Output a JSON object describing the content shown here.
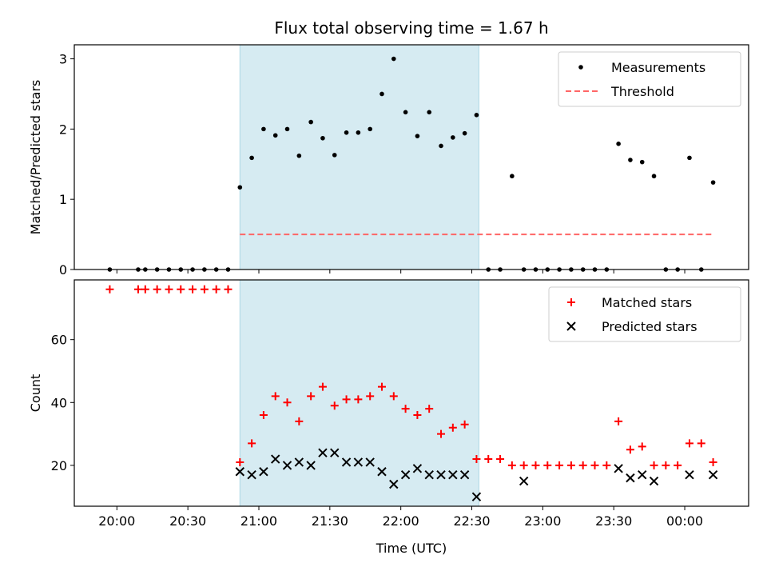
{
  "chart_data": {
    "title": "Flux total observing time = 1.67 h",
    "xlabel": "Time (UTC)",
    "x_axis_type": "time",
    "x_tick_labels": [
      "20:00",
      "20:30",
      "21:00",
      "21:30",
      "22:00",
      "22:30",
      "23:00",
      "23:30",
      "00:00"
    ],
    "x_tick_times": [
      "20:00",
      "20:30",
      "21:00",
      "21:30",
      "22:00",
      "22:30",
      "23:00",
      "23:30",
      "00:00"
    ],
    "xlim": [
      "19:42",
      "00:27"
    ],
    "shaded_region": {
      "start": "20:52",
      "end": "22:33",
      "color": "#add8e6"
    },
    "times": [
      "19:57",
      "20:09",
      "20:12",
      "20:17",
      "20:22",
      "20:27",
      "20:32",
      "20:37",
      "20:42",
      "20:47",
      "20:52",
      "20:57",
      "21:02",
      "21:07",
      "21:12",
      "21:17",
      "21:22",
      "21:27",
      "21:32",
      "21:37",
      "21:42",
      "21:47",
      "21:52",
      "21:57",
      "22:02",
      "22:07",
      "22:12",
      "22:17",
      "22:22",
      "22:27",
      "22:32",
      "22:37",
      "22:42",
      "22:47",
      "22:52",
      "22:57",
      "23:02",
      "23:07",
      "23:12",
      "23:17",
      "23:22",
      "23:27",
      "23:32",
      "23:37",
      "23:42",
      "23:47",
      "23:52",
      "23:57",
      "00:02",
      "00:07",
      "00:12"
    ],
    "panels": [
      {
        "type": "scatter",
        "ylabel": "Matched/Predicted stars",
        "ylim": [
          0,
          3.2
        ],
        "yticks": [
          0,
          1,
          2,
          3
        ],
        "grid": false,
        "legend_position": "top-right",
        "series": [
          {
            "name": "Measurements",
            "marker": "dot",
            "color": "#000000",
            "values": [
              0,
              0,
              0,
              0,
              0,
              0,
              0,
              0,
              0,
              0,
              1.17,
              1.59,
              2.0,
              1.91,
              2.0,
              1.62,
              2.1,
              1.87,
              1.63,
              1.95,
              1.95,
              2.0,
              2.5,
              3.0,
              2.24,
              1.9,
              2.24,
              1.76,
              1.88,
              1.94,
              2.2,
              0,
              0,
              1.33,
              0,
              0,
              0,
              0,
              0,
              0,
              0,
              0,
              1.79,
              1.56,
              1.53,
              1.33,
              0,
              0,
              1.59,
              0,
              1.24
            ]
          },
          {
            "name": "Threshold",
            "type": "line",
            "style": "dashed",
            "color": "#ff6666",
            "x_start": "20:52",
            "x_end": "00:12",
            "value": 0.5
          }
        ]
      },
      {
        "type": "scatter",
        "ylabel": "Count",
        "ylim": [
          7,
          79
        ],
        "yticks": [
          20,
          40,
          60
        ],
        "grid": false,
        "legend_position": "top-right",
        "series": [
          {
            "name": "Matched stars",
            "marker": "plus",
            "color": "#ff0000",
            "values": [
              76,
              76,
              76,
              76,
              76,
              76,
              76,
              76,
              76,
              76,
              21,
              27,
              36,
              42,
              40,
              34,
              42,
              45,
              39,
              41,
              41,
              42,
              45,
              42,
              38,
              36,
              38,
              30,
              32,
              33,
              22,
              22,
              22,
              20,
              20,
              20,
              20,
              20,
              20,
              20,
              20,
              20,
              34,
              25,
              26,
              20,
              20,
              20,
              27,
              27,
              21
            ]
          },
          {
            "name": "Predicted stars",
            "marker": "x",
            "color": "#000000",
            "times": [
              "20:52",
              "20:57",
              "21:02",
              "21:07",
              "21:12",
              "21:17",
              "21:22",
              "21:27",
              "21:32",
              "21:37",
              "21:42",
              "21:47",
              "21:52",
              "21:57",
              "22:02",
              "22:07",
              "22:12",
              "22:17",
              "22:22",
              "22:27",
              "22:32",
              "22:52",
              "23:32",
              "23:37",
              "23:42",
              "23:47",
              "00:02",
              "00:12"
            ],
            "values": [
              18,
              17,
              18,
              22,
              20,
              21,
              20,
              24,
              24,
              21,
              21,
              21,
              18,
              14,
              17,
              19,
              17,
              17,
              17,
              17,
              10,
              15,
              19,
              16,
              17,
              15,
              17,
              17
            ]
          }
        ]
      }
    ]
  }
}
